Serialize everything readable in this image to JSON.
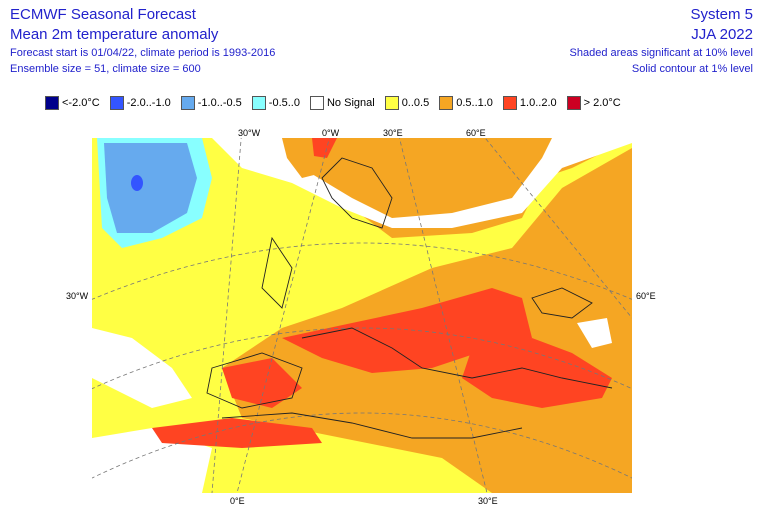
{
  "header": {
    "title": "ECMWF Seasonal Forecast",
    "subtitle": "Mean 2m temperature anomaly",
    "info1": "Forecast start is 01/04/22, climate period is 1993-2016",
    "info2": "Ensemble size = 51, climate size = 600",
    "system": "System 5",
    "period": "JJA 2022",
    "sig1": "Shaded areas significant at 10% level",
    "sig2": "Solid contour at 1% level"
  },
  "legend": [
    {
      "label": "<-2.0°C",
      "color": "#00008b"
    },
    {
      "label": "-2.0..-1.0",
      "color": "#3355ff"
    },
    {
      "label": "-1.0..-0.5",
      "color": "#66aaee"
    },
    {
      "label": "-0.5..0",
      "color": "#88ffff"
    },
    {
      "label": "No Signal",
      "color": "#ffffff"
    },
    {
      "label": "0..0.5",
      "color": "#ffff44"
    },
    {
      "label": "0.5..1.0",
      "color": "#f5a623"
    },
    {
      "label": "1.0..2.0",
      "color": "#ff4422"
    },
    {
      "label": "> 2.0°C",
      "color": "#cc0022"
    }
  ],
  "graticule": {
    "top": [
      "30°W",
      "0°W",
      "30°E",
      "60°E"
    ],
    "left": "30°W",
    "right": "60°E",
    "bottom": [
      "0°E",
      "30°E"
    ]
  }
}
